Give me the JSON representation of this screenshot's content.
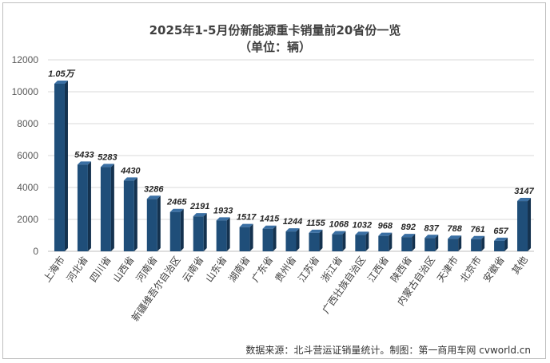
{
  "chart_data": {
    "type": "bar",
    "title": "2025年1-5月份新能源重卡销量前20省份一览",
    "subtitle": "（单位：辆）",
    "ylim": [
      0,
      12000
    ],
    "yticks": [
      0,
      2000,
      4000,
      6000,
      8000,
      10000,
      12000
    ],
    "grid": true,
    "bar_color": "#1f4e79",
    "categories": [
      "上海市",
      "河北省",
      "四川省",
      "山西省",
      "河南省",
      "新疆维吾尔自治区",
      "云南省",
      "山东省",
      "湖南省",
      "广东省",
      "贵州省",
      "江苏省",
      "浙江省",
      "广西壮族自治区",
      "江西省",
      "陕西省",
      "内蒙古自治区",
      "天津市",
      "北京市",
      "安徽省",
      "其他"
    ],
    "values": [
      10500,
      5433,
      5283,
      4430,
      3286,
      2465,
      2191,
      1933,
      1517,
      1415,
      1244,
      1155,
      1068,
      1032,
      968,
      892,
      837,
      788,
      761,
      657,
      3147
    ],
    "data_labels": [
      "1.05万",
      "5433",
      "5283",
      "4430",
      "3286",
      "2465",
      "2191",
      "1933",
      "1517",
      "1415",
      "1244",
      "1155",
      "1068",
      "1032",
      "968",
      "892",
      "837",
      "788",
      "761",
      "657",
      "3147"
    ],
    "source": "数据来源：北斗营运证销量统计。制图：第一商用车网 cvworld.cn"
  }
}
